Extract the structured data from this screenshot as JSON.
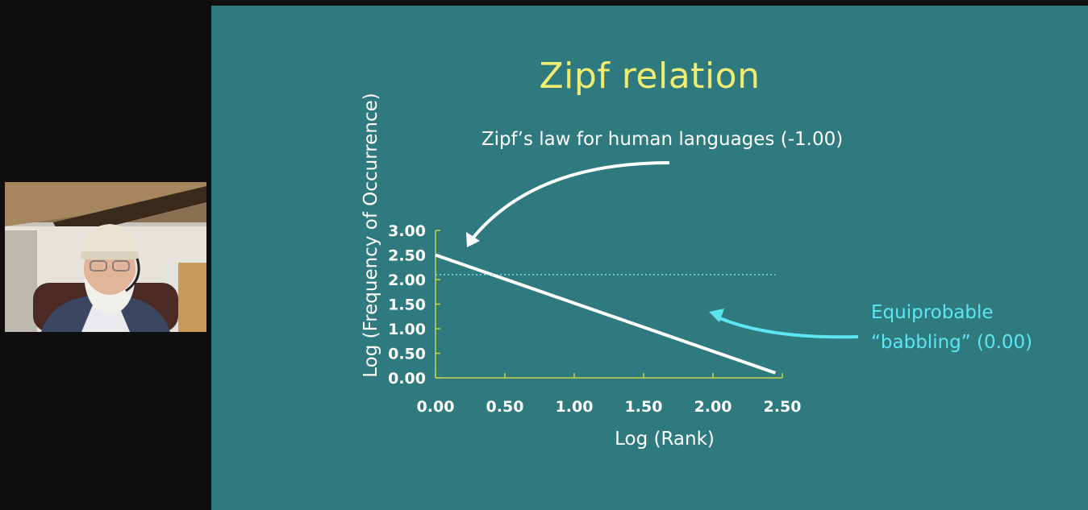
{
  "slide": {
    "title": "Zipf relation",
    "annotations": {
      "zipf_label": "Zipf’s law for human languages (-1.00)",
      "babbling_line1": "Equiprobable",
      "babbling_line2": "“babbling” (0.00)"
    }
  },
  "chart_data": {
    "type": "line",
    "title": "Zipf relation",
    "xlabel": "Log (Rank)",
    "ylabel": "Log (Frequency of Occurrence)",
    "xlim": [
      0,
      2.5
    ],
    "ylim": [
      0,
      3
    ],
    "x_ticks": [
      "0.00",
      "0.50",
      "1.00",
      "1.50",
      "2.00",
      "2.50"
    ],
    "y_ticks": [
      "0.00",
      "0.50",
      "1.00",
      "1.50",
      "2.00",
      "2.50",
      "3.00"
    ],
    "grid": false,
    "series": [
      {
        "name": "Zipf’s law for human languages (-1.00)",
        "style": "solid",
        "color": "#ffffff",
        "x": [
          0.0,
          2.45
        ],
        "y": [
          2.5,
          0.1
        ]
      },
      {
        "name": "Equiprobable “babbling” (0.00)",
        "style": "dotted",
        "color": "#7fe3ea",
        "x": [
          0.0,
          2.45
        ],
        "y": [
          2.1,
          2.1
        ]
      }
    ],
    "colors": {
      "axis": "#c8d24a",
      "title": "#f0ec72",
      "background": "#2e7a7e",
      "accent": "#5ee6f0"
    }
  },
  "webcam": {
    "icon": "presenter-video-icon"
  }
}
